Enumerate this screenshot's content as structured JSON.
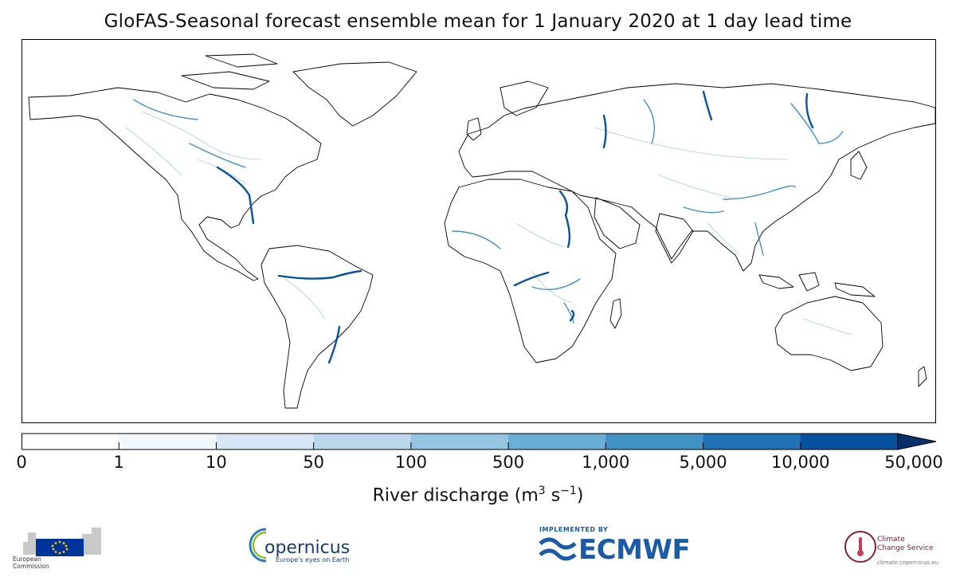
{
  "title": "GloFAS-Seasonal forecast ensemble mean for 1 January 2020 at 1 day lead time",
  "map": {
    "projection": "Plate Carrée (global)",
    "variable": "River discharge",
    "land_outline_color": "#000000",
    "ocean_color": "#ffffff"
  },
  "colorbar": {
    "label_prefix": "River discharge (m",
    "label_exp1": "3",
    "label_mid": " s",
    "label_exp2": "−1",
    "label_suffix": ")",
    "extend": "max",
    "ticks": [
      "0",
      "1",
      "10",
      "50",
      "100",
      "500",
      "1,000",
      "5,000",
      "10,000",
      "50,000"
    ],
    "colors": [
      "#ffffff",
      "#eff6fc",
      "#d6e6f4",
      "#bad6eb",
      "#94c4df",
      "#6aaed6",
      "#4292c6",
      "#2171b5",
      "#08519c",
      "#08306b"
    ]
  },
  "logos": {
    "ec": {
      "name": "European Commission",
      "line1": "European",
      "line2": "Commission",
      "flag_color": "#003399",
      "star_color": "#ffcc00"
    },
    "copernicus": {
      "word": "opernicus",
      "tagline": "Europe's eyes on Earth",
      "color": "#1c3c6e"
    },
    "ecmwf": {
      "implemented_by": "IMPLEMENTED BY",
      "word": "ECMWF",
      "color": "#1b5aa6"
    },
    "c3s": {
      "line1": "Climate",
      "line2": "Change Service",
      "url": "climate.copernicus.eu",
      "color": "#8a1c3c"
    }
  }
}
